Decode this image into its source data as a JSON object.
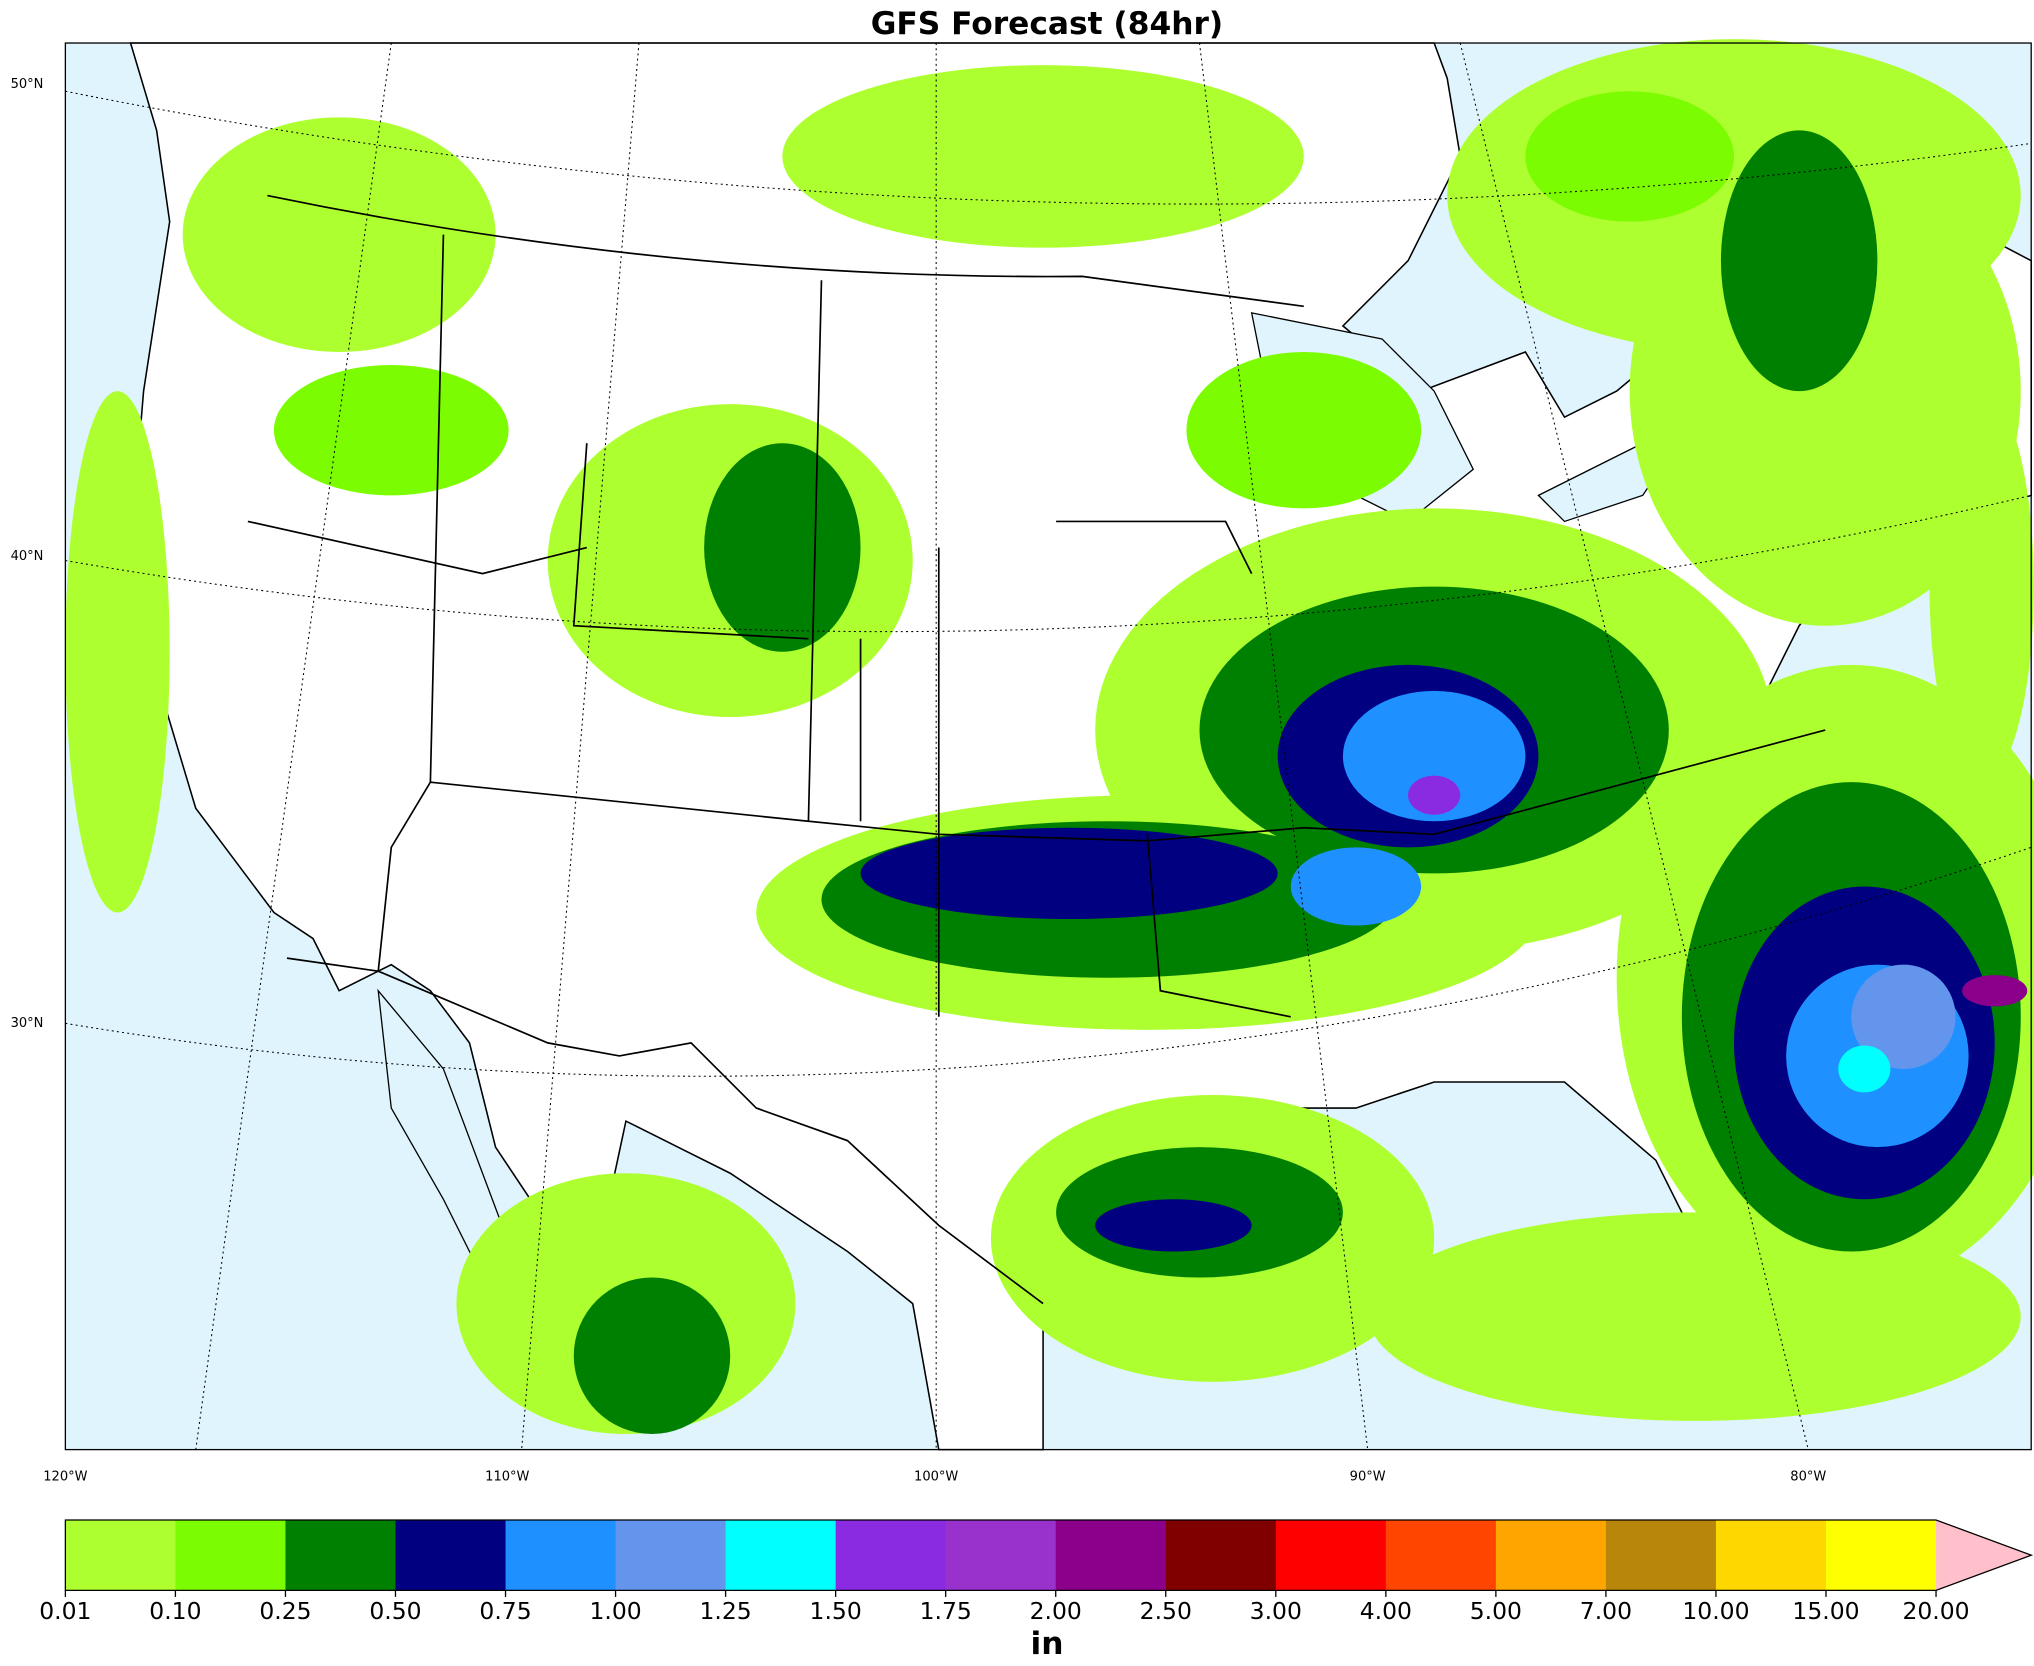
{
  "title": "GFS Forecast (84hr)",
  "map": {
    "lat_labels": [
      "50°N",
      "40°N",
      "30°N"
    ],
    "lon_labels": [
      "120°W",
      "110°W",
      "100°W",
      "90°W",
      "80°W"
    ]
  },
  "colorbar": {
    "bounds": [
      {
        "value": 0.01,
        "label": "0.01"
      },
      {
        "value": 0.1,
        "label": "0.10"
      },
      {
        "value": 0.25,
        "label": "0.25"
      },
      {
        "value": 0.5,
        "label": "0.50"
      },
      {
        "value": 0.75,
        "label": "0.75"
      },
      {
        "value": 1,
        "label": "1.00"
      },
      {
        "value": 1.25,
        "label": "1.25"
      },
      {
        "value": 1.5,
        "label": "1.50"
      },
      {
        "value": 1.75,
        "label": "1.75"
      },
      {
        "value": 2,
        "label": "2.00"
      },
      {
        "value": 2.5,
        "label": "2.50"
      },
      {
        "value": 3,
        "label": "3.00"
      },
      {
        "value": 4,
        "label": "4.00"
      },
      {
        "value": 5,
        "label": "5.00"
      },
      {
        "value": 7,
        "label": "7.00"
      },
      {
        "value": 10,
        "label": "10.00"
      },
      {
        "value": 15,
        "label": "15.00"
      },
      {
        "value": 20,
        "label": "20.00"
      }
    ],
    "colors": [
      "#adff2f",
      "#7cfc00",
      "#008000",
      "#000080",
      "#1e90ff",
      "#6495ed",
      "#00ffff",
      "#8a2be2",
      "#9932cc",
      "#8b008b",
      "#800000",
      "#ff0000",
      "#ff4500",
      "#ffa500",
      "#b8860b",
      "#ffd700",
      "#ffff00"
    ],
    "extend_color": "#ffc0cb",
    "unit": "in"
  }
}
